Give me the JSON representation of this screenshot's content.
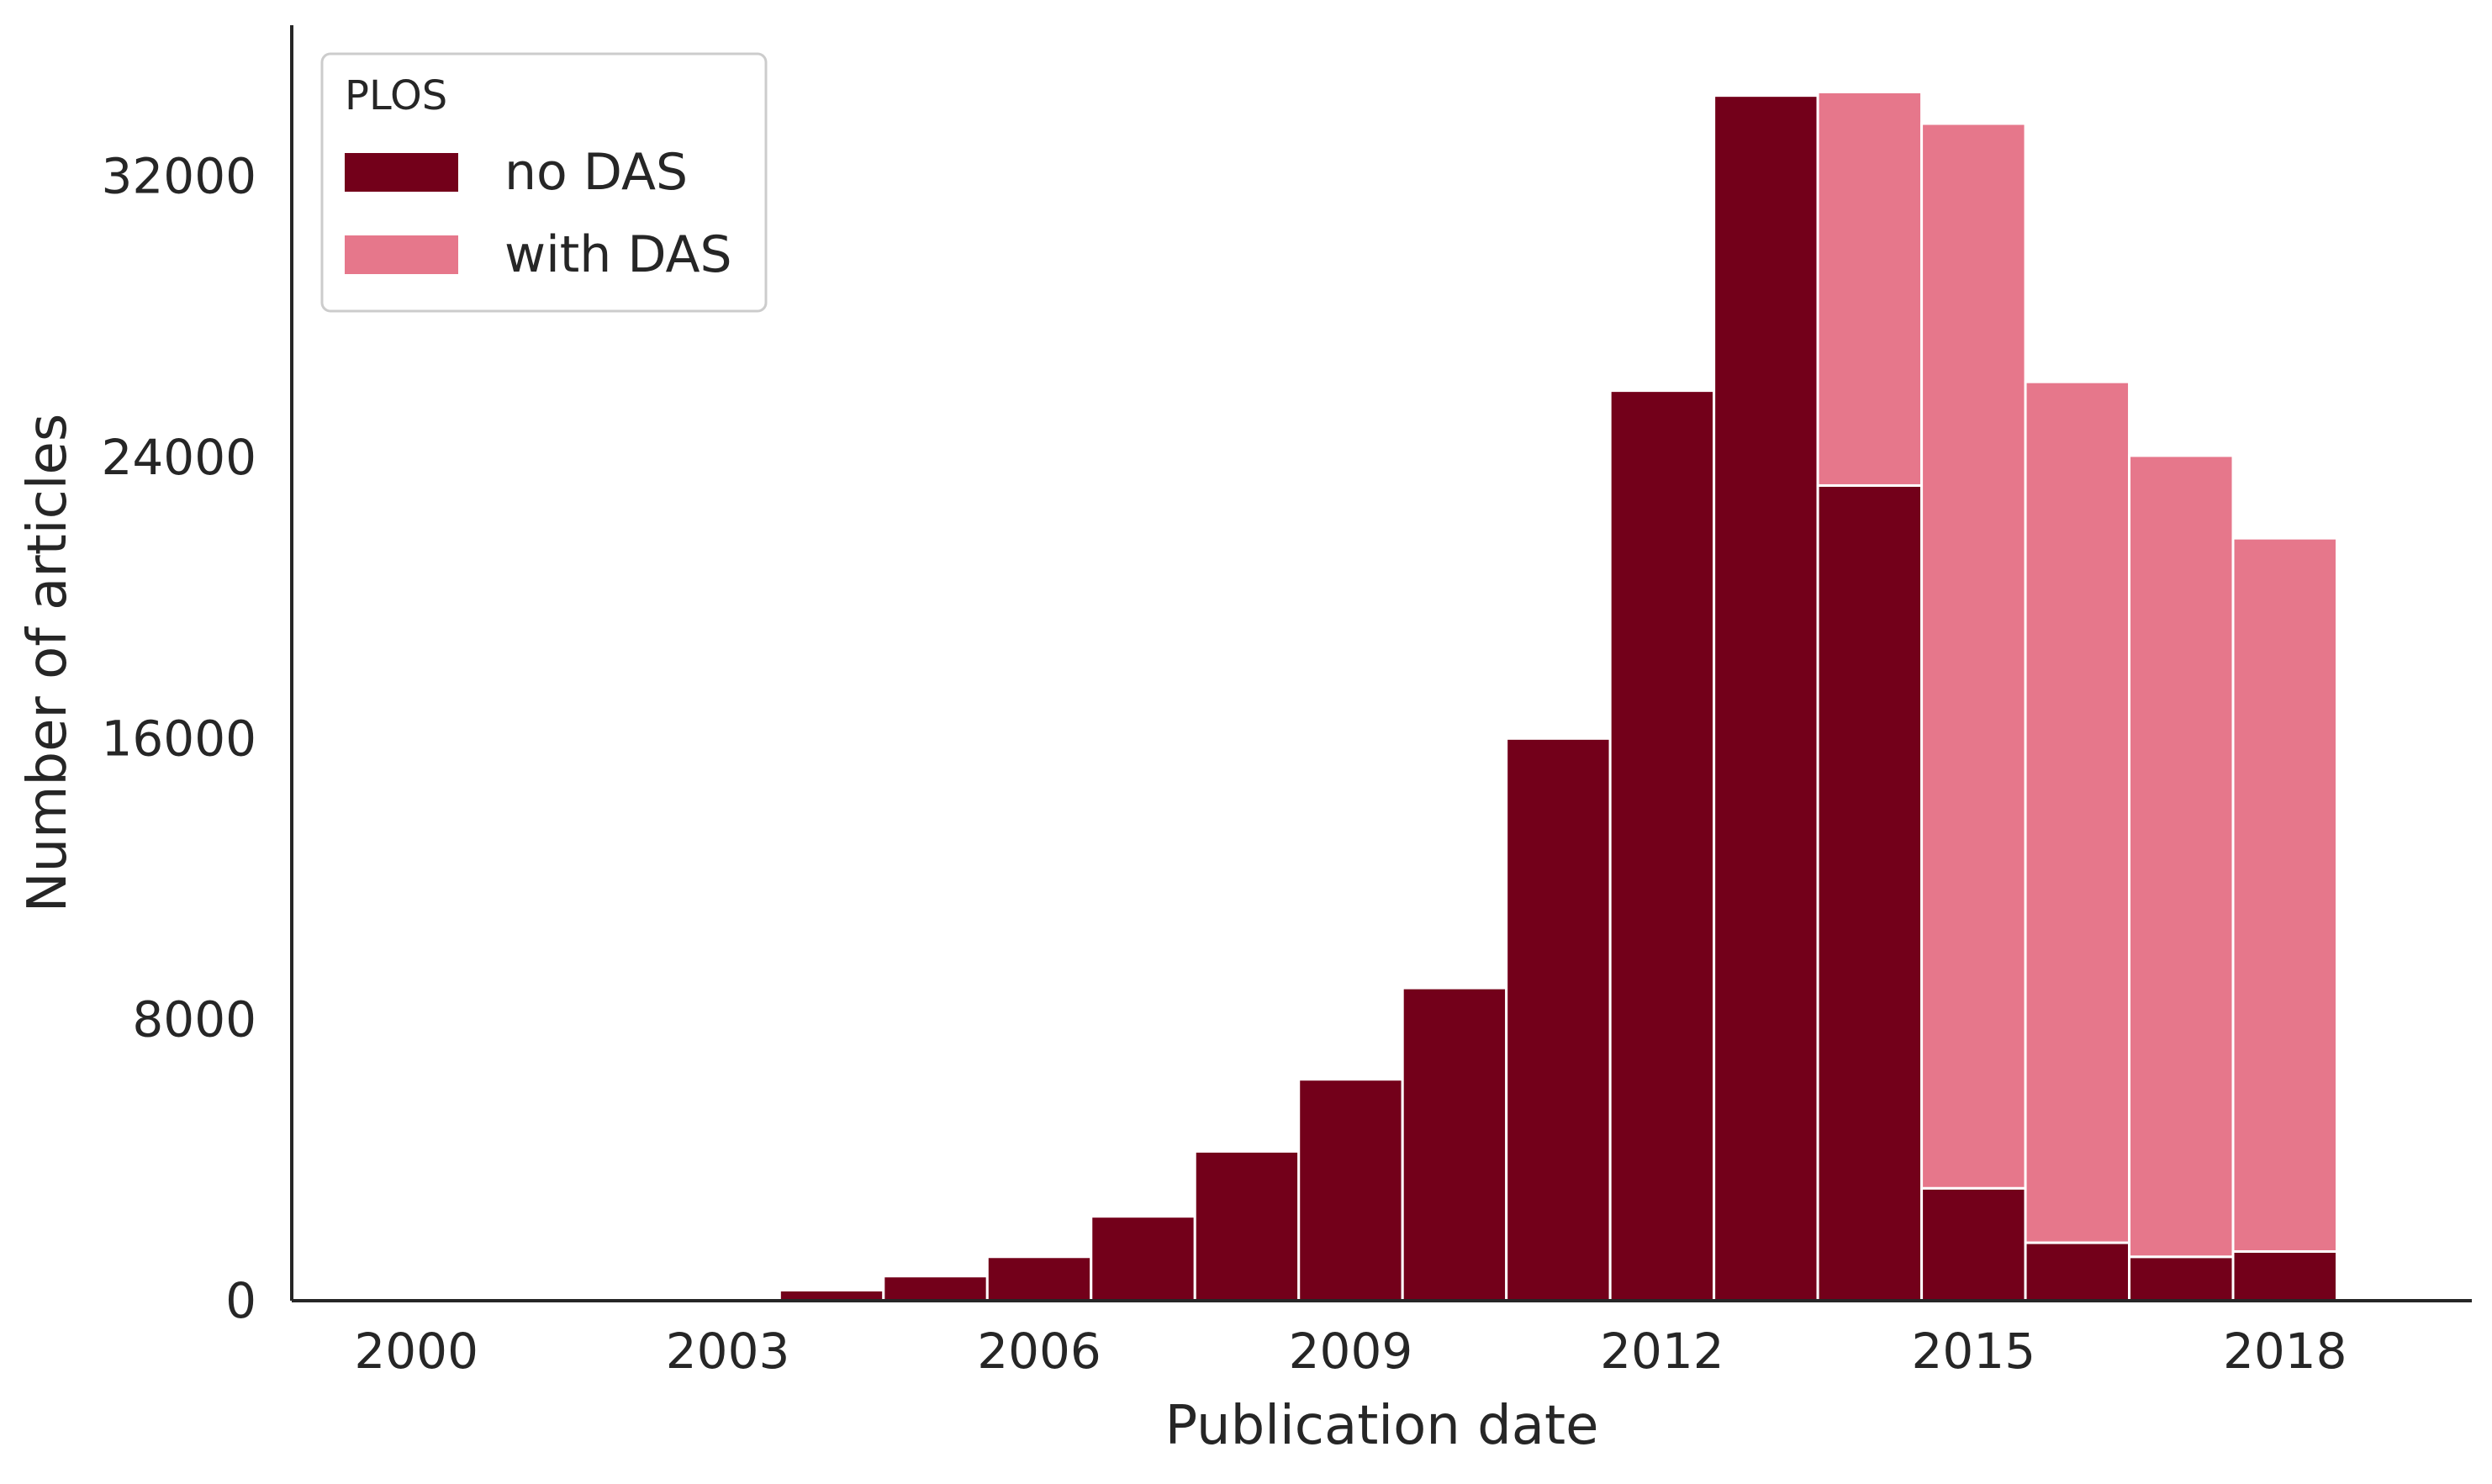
{
  "chart_data": {
    "type": "bar",
    "stacked": true,
    "title": "",
    "xlabel": "Publication date",
    "ylabel": "Number of articles",
    "x_tick_labels": [
      "2000",
      "2003",
      "2006",
      "2009",
      "2012",
      "2015",
      "2018"
    ],
    "x_tick_values": [
      2000,
      2003,
      2006,
      2009,
      2012,
      2015,
      2018
    ],
    "y_tick_labels": [
      "0",
      "8000",
      "16000",
      "24000",
      "32000"
    ],
    "y_tick_values": [
      0,
      8000,
      16000,
      24000,
      32000
    ],
    "xlim": [
      1998.8,
      2019.8
    ],
    "ylim": [
      0,
      36300
    ],
    "grid": false,
    "categories": [
      "2004",
      "2005",
      "2006",
      "2007",
      "2008",
      "2009",
      "2010",
      "2011",
      "2012",
      "2013",
      "2014",
      "2015",
      "2016",
      "2017",
      "2018"
    ],
    "series": [
      {
        "name": "no DAS",
        "color": "#73001a",
        "values": [
          300,
          700,
          1250,
          2400,
          4250,
          6300,
          8900,
          16000,
          25900,
          34300,
          23200,
          3200,
          1650,
          1250,
          1400
        ]
      },
      {
        "name": "with DAS",
        "color": "#e6778b",
        "values": [
          0,
          0,
          0,
          0,
          0,
          0,
          0,
          0,
          0,
          60,
          11200,
          30300,
          24500,
          22800,
          20300
        ]
      }
    ],
    "legend": {
      "title": "PLOS",
      "placement": "top-left",
      "entries": [
        {
          "label": "no DAS",
          "color": "#73001a"
        },
        {
          "label": "with DAS",
          "color": "#e6778b"
        }
      ]
    }
  }
}
